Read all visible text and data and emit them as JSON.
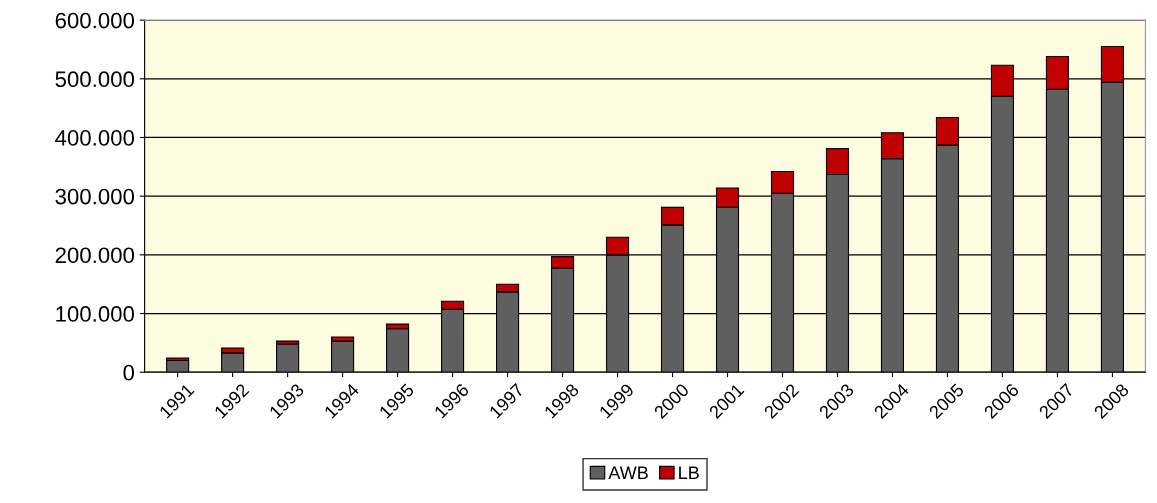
{
  "chart_data": {
    "type": "bar",
    "stacked": true,
    "categories": [
      "1991",
      "1992",
      "1993",
      "1994",
      "1995",
      "1996",
      "1997",
      "1998",
      "1999",
      "2000",
      "2001",
      "2002",
      "2003",
      "2004",
      "2005",
      "2006",
      "2007",
      "2008"
    ],
    "series": [
      {
        "name": "AWB",
        "color": "#5f5f5f",
        "values": [
          20000,
          33000,
          48000,
          53000,
          74000,
          107000,
          137000,
          177000,
          200000,
          251000,
          281000,
          305000,
          337000,
          364000,
          387000,
          470000,
          482000,
          494000
        ]
      },
      {
        "name": "LB",
        "color": "#c00000",
        "values": [
          4000,
          8000,
          5000,
          7000,
          8000,
          14000,
          13000,
          20000,
          30000,
          30000,
          33000,
          37000,
          44000,
          44000,
          47000,
          53000,
          56000,
          61000
        ]
      }
    ],
    "ylim": [
      0,
      600000
    ],
    "yticks": [
      {
        "value": 0,
        "label": "0"
      },
      {
        "value": 100000,
        "label": "100.000"
      },
      {
        "value": 200000,
        "label": "200.000"
      },
      {
        "value": 300000,
        "label": "300.000"
      },
      {
        "value": 400000,
        "label": "400.000"
      },
      {
        "value": 500000,
        "label": "500.000"
      },
      {
        "value": 600000,
        "label": "600.000"
      }
    ],
    "grid": "y",
    "legend": "bottom"
  }
}
